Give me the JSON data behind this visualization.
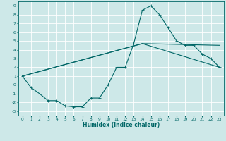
{
  "xlabel": "Humidex (Indice chaleur)",
  "ylabel": "",
  "bg_color": "#cde8e8",
  "grid_color": "#ffffff",
  "line_color": "#006666",
  "xlim": [
    -0.5,
    23.5
  ],
  "ylim": [
    -3.5,
    9.5
  ],
  "xticks": [
    0,
    1,
    2,
    3,
    4,
    5,
    6,
    7,
    8,
    9,
    10,
    11,
    12,
    13,
    14,
    15,
    16,
    17,
    18,
    19,
    20,
    21,
    22,
    23
  ],
  "yticks": [
    -3,
    -2,
    -1,
    0,
    1,
    2,
    3,
    4,
    5,
    6,
    7,
    8,
    9
  ],
  "line1_x": [
    0,
    1,
    2,
    3,
    4,
    5,
    6,
    7,
    8,
    9,
    10,
    11,
    12,
    13,
    14,
    15,
    16,
    17,
    18,
    19,
    20,
    21,
    22,
    23
  ],
  "line1_y": [
    1,
    -0.3,
    -1,
    -1.8,
    -1.8,
    -2.4,
    -2.5,
    -2.5,
    -1.5,
    -1.5,
    0,
    2,
    2,
    4.7,
    8.5,
    9,
    8,
    6.5,
    5,
    4.5,
    4.5,
    3.5,
    3,
    2
  ],
  "line2_x": [
    0,
    14,
    23
  ],
  "line2_y": [
    1,
    4.7,
    4.5
  ],
  "line3_x": [
    0,
    14,
    23
  ],
  "line3_y": [
    1,
    4.7,
    2.0
  ],
  "marker": "+",
  "markersize": 3,
  "linewidth": 0.8
}
